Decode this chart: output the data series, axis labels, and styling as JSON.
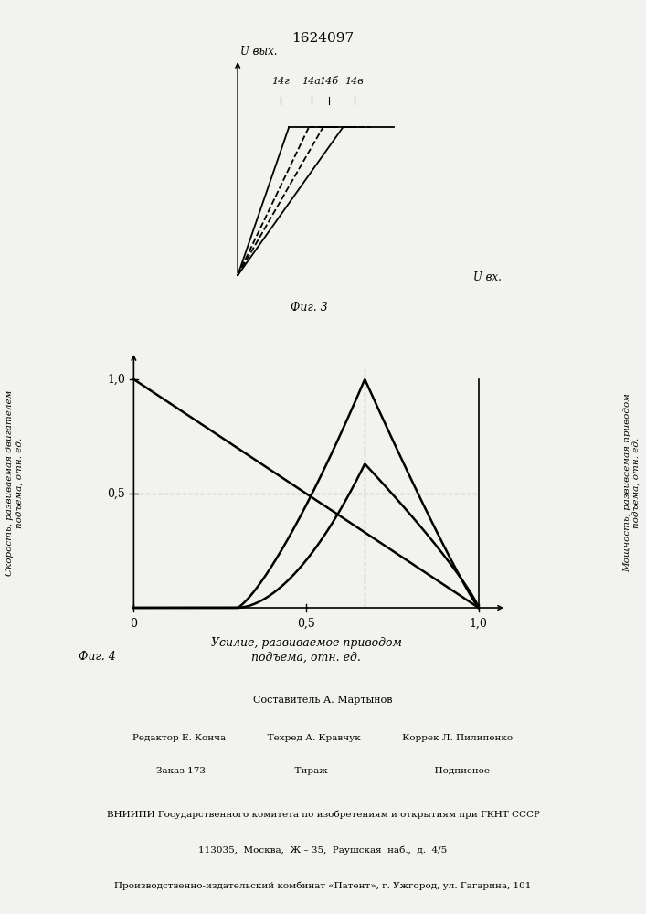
{
  "title": "1624097",
  "fig3_title": "Фиг. 3",
  "fig4_title": "Фиг. 4",
  "fig3_xlabel": "U вх.",
  "fig3_ylabel": "U вых.",
  "fig4_xlabel": "Усилие, развиваемое приводом\nподъема, отн. ед.",
  "fig4_ylabel_left": "Скорость, развиваемая двигателем\nподъема, отн. ед.",
  "fig4_ylabel_right": "Мощность, развиваемая приводом\nподъема, отн. ед.",
  "curve_labels": [
    "14г",
    "14а",
    "14б",
    "14в"
  ],
  "background_color": "#f2f2ee",
  "footer_lines": [
    "Составитель А. Мартынов",
    "Редактор Е. Конча              Техред А. Кравчук              Коррек Л. Пилипенко",
    "Заказ 173                              Тираж                                    Подписное",
    "ВНИИПИ Государственного комитета по изобретениям и открытиям при ГКНТ СССР",
    "113035,  Москва,  Ж – 35,  Раушская  наб.,  д.  4/5",
    "Производственно-издательский комбинат «Патент», г. Ужгород, ул. Гагарина, 101"
  ]
}
